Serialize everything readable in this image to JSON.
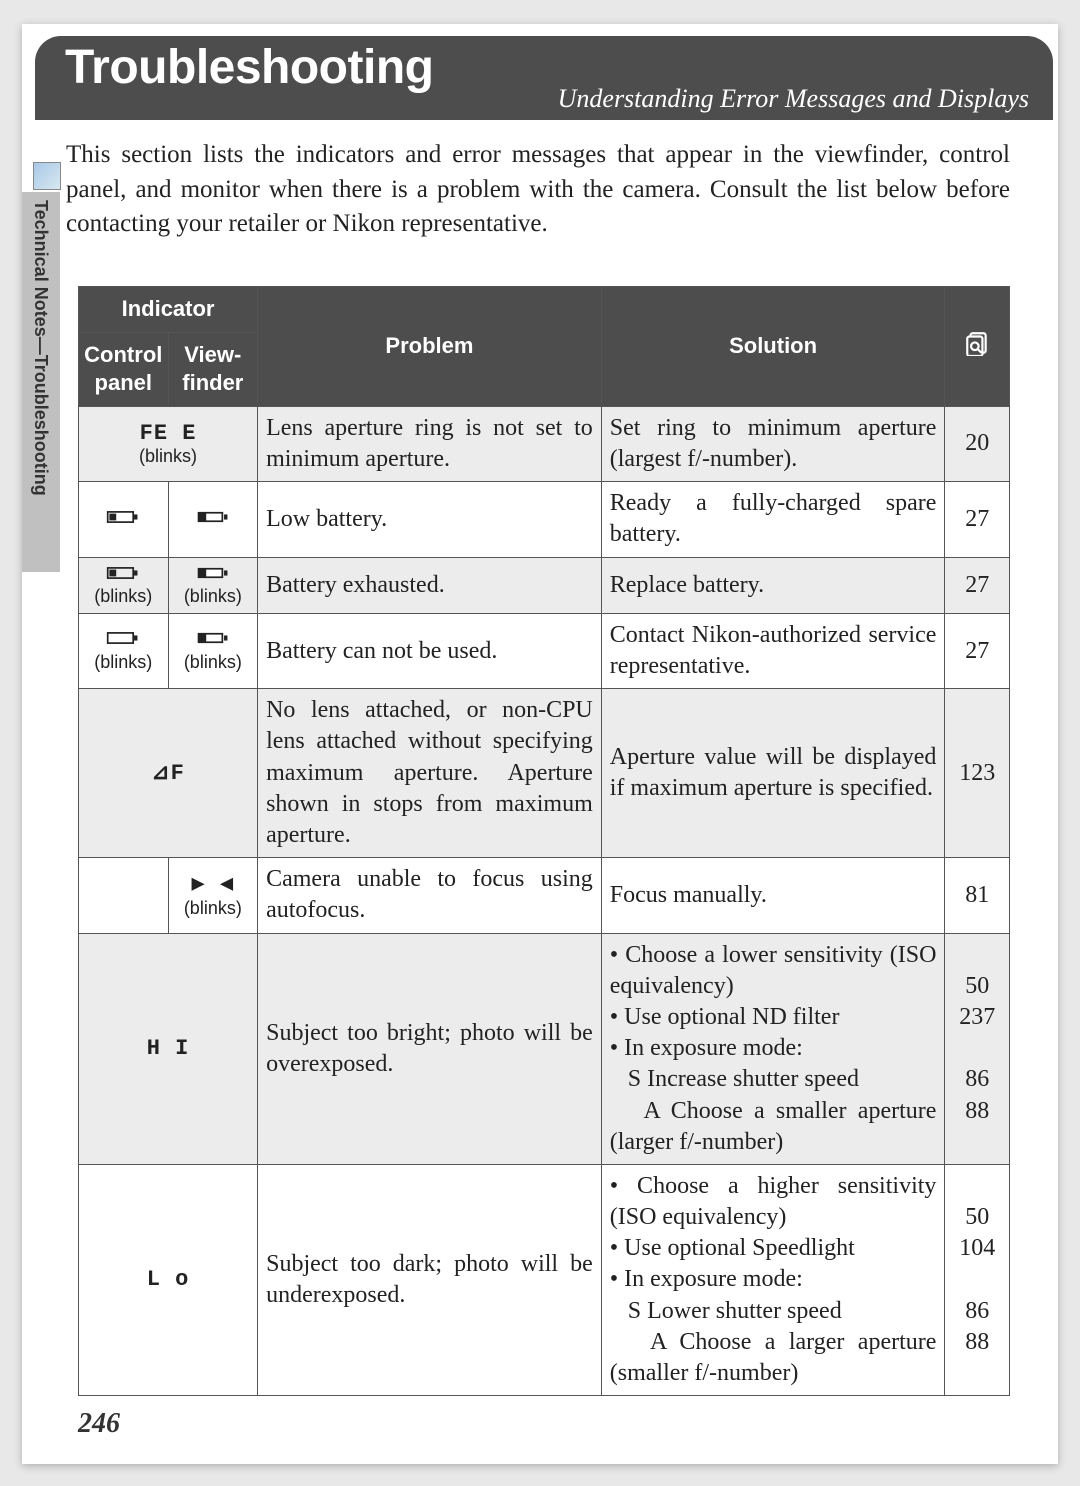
{
  "header": {
    "title": "Troubleshooting",
    "subtitle": "Understanding Error Messages and Displays"
  },
  "sideLabel": "Technical Notes—Troubleshooting",
  "intro": "This section lists the indicators and error messages that appear in the view­finder, control panel, and monitor when there is a problem with the camera. Consult the list below before contacting your retailer or Nikon representa­tive.",
  "pageNumber": "246",
  "table": {
    "headers": {
      "indicator": "Indicator",
      "controlPanel": "Control panel",
      "viewfinder": "View­finder",
      "problem": "Problem",
      "solution": "Solution"
    },
    "rows": [
      {
        "indicatorSpan": true,
        "indSymbol": "FE E",
        "indNote": "(blinks)",
        "problem": "Lens aperture ring is not set to minimum aperture.",
        "solution": "Set ring to minimum aperture (largest f/-number).",
        "ref": "20"
      },
      {
        "cpIcon": "battery-low",
        "vfIcon": "battery-low-vf",
        "problem": "Low battery.",
        "solution": "Ready a fully-charged spare battery.",
        "ref": "27"
      },
      {
        "cpIcon": "battery-low",
        "cpNote": "(blinks)",
        "vfIcon": "battery-low-vf",
        "vfNote": "(blinks)",
        "problem": "Battery exhausted.",
        "solution": "Replace battery.",
        "ref": "27"
      },
      {
        "cpIcon": "battery-empty",
        "cpNote": "(blinks)",
        "vfIcon": "battery-low-vf",
        "vfNote": "(blinks)",
        "problem": "Battery can not be used.",
        "solution": "Contact Nikon-authorized ser­vice representative.",
        "ref": "27"
      },
      {
        "indicatorSpan": true,
        "indSymbol": "⊿F",
        "problem": "No lens attached, or non-CPU lens attached without specifying maximum aperture. Aperture shown in stops from maximum aperture.",
        "solution": "Aperture value will be dis­played if maximum aperture is specified.",
        "ref": "123"
      },
      {
        "cpEmpty": true,
        "vfSymbol": "▶ ◀",
        "vfNote": "(blinks)",
        "problem": "Camera unable to focus using autofocus.",
        "solution": "Focus manually.",
        "ref": "81"
      },
      {
        "indicatorSpan": true,
        "indSymbol": "H I",
        "problem": "Subject too bright; photo will be overexposed.",
        "solutionList": [
          "Choose a lower sensitivity (ISO equivalency)",
          "Use optional ND filter",
          "In exposure mode:",
          "S  Increase shutter speed",
          "A  Choose a smaller aperture (larger f/-number)"
        ],
        "refList": [
          "50",
          "237",
          "",
          "86",
          "88"
        ]
      },
      {
        "indicatorSpan": true,
        "indSymbol": "L o",
        "problem": "Subject too dark; photo will be underexposed.",
        "solutionList": [
          "Choose a higher sensitivity (ISO equivalency)",
          "Use optional Speedlight",
          "In exposure mode:",
          "S  Lower shutter speed",
          "A  Choose a larger aperture (smaller f/-number)"
        ],
        "refList": [
          "50",
          "104",
          "",
          "86",
          "88"
        ]
      }
    ]
  }
}
